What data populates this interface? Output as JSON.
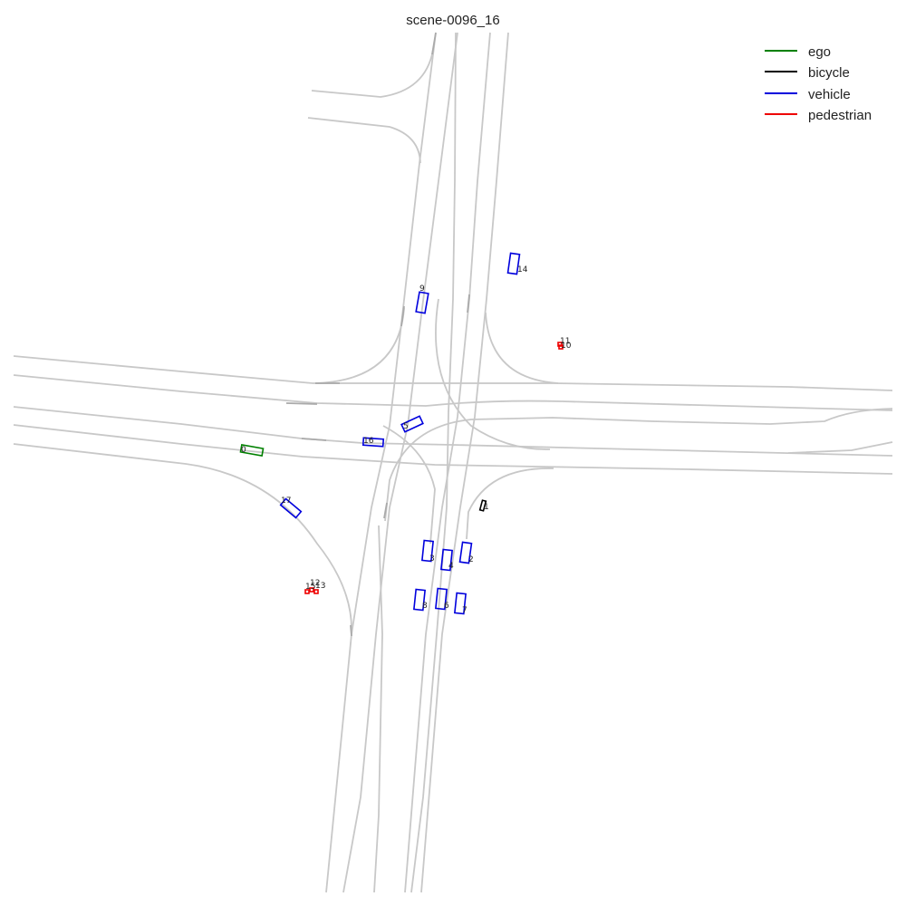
{
  "title": "scene-0096_16",
  "colors": {
    "ego": "#008000",
    "bicycle": "#000000",
    "vehicle": "#0000dd",
    "pedestrian": "#ee0000",
    "lane": "#c8c8c8"
  },
  "legend": [
    {
      "key": "ego",
      "label": "ego"
    },
    {
      "key": "bicycle",
      "label": "bicycle"
    },
    {
      "key": "vehicle",
      "label": "vehicle"
    },
    {
      "key": "pedestrian",
      "label": "pedestrian"
    }
  ],
  "agents": [
    {
      "id": "0",
      "type": "ego"
    },
    {
      "id": "1",
      "type": "bicycle"
    },
    {
      "id": "2",
      "type": "vehicle"
    },
    {
      "id": "3",
      "type": "vehicle"
    },
    {
      "id": "4",
      "type": "vehicle"
    },
    {
      "id": "5",
      "type": "vehicle"
    },
    {
      "id": "6",
      "type": "vehicle"
    },
    {
      "id": "7",
      "type": "vehicle"
    },
    {
      "id": "8",
      "type": "vehicle"
    },
    {
      "id": "9",
      "type": "vehicle"
    },
    {
      "id": "10",
      "type": "pedestrian"
    },
    {
      "id": "11",
      "type": "pedestrian"
    },
    {
      "id": "12",
      "type": "pedestrian"
    },
    {
      "id": "13",
      "type": "pedestrian"
    },
    {
      "id": "14",
      "type": "vehicle"
    },
    {
      "id": "15",
      "type": "pedestrian"
    },
    {
      "id": "16",
      "type": "vehicle"
    },
    {
      "id": "17",
      "type": "vehicle"
    }
  ]
}
